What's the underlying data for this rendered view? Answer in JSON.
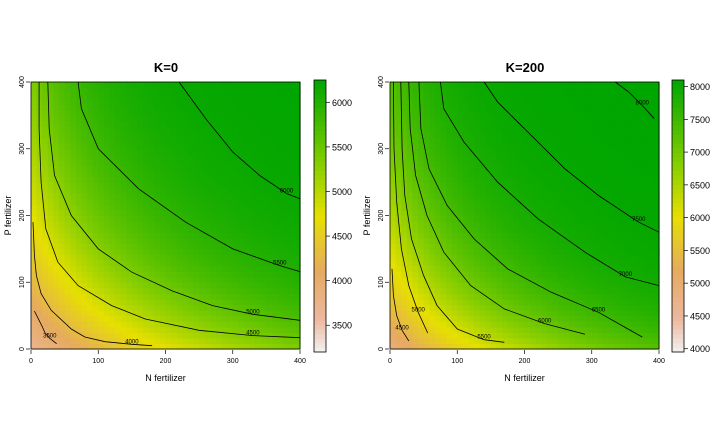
{
  "chart_data": [
    {
      "type": "heatmap",
      "title": "K=0",
      "xlabel": "N fertilizer",
      "ylabel": "P fertilizer",
      "xlim": [
        0,
        400
      ],
      "ylim": [
        0,
        400
      ],
      "xticks": [
        "0",
        "100",
        "200",
        "300",
        "400"
      ],
      "yticks": [
        "0",
        "100",
        "200",
        "300",
        "400"
      ],
      "colorbar": {
        "range": [
          3200,
          6250
        ],
        "ticks": [
          "3500",
          "4000",
          "4500",
          "5000",
          "5500",
          "6000"
        ]
      },
      "contours": [
        {
          "level": "3500",
          "points": [
            [
              5,
              57
            ],
            [
              12,
              43
            ],
            [
              17,
              33
            ],
            [
              21,
              24
            ],
            [
              28,
              16
            ],
            [
              38,
              8
            ]
          ]
        },
        {
          "level": "4000",
          "points": [
            [
              3,
              190
            ],
            [
              5,
              140
            ],
            [
              8,
              110
            ],
            [
              15,
              83
            ],
            [
              30,
              58
            ],
            [
              60,
              30
            ],
            [
              80,
              18
            ],
            [
              110,
              11
            ],
            [
              150,
              7
            ],
            [
              180,
              5
            ]
          ]
        },
        {
          "level": "4500",
          "points": [
            [
              12,
              400
            ],
            [
              12,
              330
            ],
            [
              15,
              250
            ],
            [
              22,
              180
            ],
            [
              40,
              130
            ],
            [
              70,
              95
            ],
            [
              120,
              65
            ],
            [
              170,
              45
            ],
            [
              250,
              28
            ],
            [
              330,
              20
            ],
            [
              400,
              17
            ]
          ]
        },
        {
          "level": "5000",
          "points": [
            [
              25,
              400
            ],
            [
              27,
              330
            ],
            [
              35,
              260
            ],
            [
              60,
              200
            ],
            [
              100,
              150
            ],
            [
              150,
              115
            ],
            [
              210,
              87
            ],
            [
              270,
              65
            ],
            [
              330,
              52
            ],
            [
              400,
              43
            ]
          ]
        },
        {
          "level": "5500",
          "points": [
            [
              70,
              400
            ],
            [
              75,
              360
            ],
            [
              100,
              300
            ],
            [
              160,
              240
            ],
            [
              230,
              190
            ],
            [
              300,
              150
            ],
            [
              370,
              125
            ],
            [
              400,
              116
            ]
          ]
        },
        {
          "level": "6000",
          "points": [
            [
              220,
              400
            ],
            [
              260,
              345
            ],
            [
              300,
              295
            ],
            [
              340,
              260
            ],
            [
              380,
              233
            ],
            [
              400,
              225
            ]
          ]
        }
      ],
      "colors": {
        "low": "#f2f2f2",
        "mid_low": "#e5b47f",
        "mid": "#e6e000",
        "high": "#00a600"
      }
    },
    {
      "type": "heatmap",
      "title": "K=200",
      "xlabel": "N fertilizer",
      "ylabel": "P fertilizer",
      "xlim": [
        0,
        400
      ],
      "ylim": [
        0,
        400
      ],
      "xticks": [
        "0",
        "100",
        "200",
        "300",
        "400"
      ],
      "yticks": [
        "0",
        "100",
        "200",
        "300",
        "400"
      ],
      "colorbar": {
        "range": [
          3950,
          8100
        ],
        "ticks": [
          "4000",
          "4500",
          "5000",
          "5500",
          "6000",
          "6500",
          "7000",
          "7500",
          "8000"
        ]
      },
      "contours": [
        {
          "level": "4500",
          "points": [
            [
              3,
              120
            ],
            [
              5,
              80
            ],
            [
              10,
              50
            ],
            [
              18,
              28
            ],
            [
              28,
              12
            ]
          ]
        },
        {
          "level": "5000",
          "points": [
            [
              5,
              400
            ],
            [
              6,
              300
            ],
            [
              10,
              220
            ],
            [
              17,
              150
            ],
            [
              28,
              95
            ],
            [
              42,
              55
            ],
            [
              56,
              24
            ]
          ]
        },
        {
          "level": "5500",
          "points": [
            [
              16,
              400
            ],
            [
              18,
              300
            ],
            [
              22,
              230
            ],
            [
              32,
              165
            ],
            [
              50,
              110
            ],
            [
              70,
              65
            ],
            [
              100,
              30
            ],
            [
              140,
              14
            ],
            [
              170,
              10
            ]
          ]
        },
        {
          "level": "6000",
          "points": [
            [
              28,
              400
            ],
            [
              30,
              330
            ],
            [
              38,
              260
            ],
            [
              55,
              200
            ],
            [
              80,
              145
            ],
            [
              120,
              95
            ],
            [
              170,
              60
            ],
            [
              230,
              38
            ],
            [
              290,
              22
            ]
          ]
        },
        {
          "level": "6500",
          "points": [
            [
              43,
              400
            ],
            [
              46,
              330
            ],
            [
              58,
              270
            ],
            [
              85,
              215
            ],
            [
              125,
              165
            ],
            [
              175,
              120
            ],
            [
              240,
              85
            ],
            [
              310,
              55
            ],
            [
              375,
              18
            ]
          ]
        },
        {
          "level": "7000",
          "points": [
            [
              75,
              400
            ],
            [
              80,
              360
            ],
            [
              110,
              310
            ],
            [
              160,
              250
            ],
            [
              220,
              195
            ],
            [
              290,
              145
            ],
            [
              350,
              108
            ],
            [
              400,
              95
            ]
          ]
        },
        {
          "level": "7500",
          "points": [
            [
              140,
              400
            ],
            [
              160,
              370
            ],
            [
              210,
              320
            ],
            [
              260,
              270
            ],
            [
              310,
              230
            ],
            [
              370,
              190
            ],
            [
              400,
              175
            ]
          ]
        },
        {
          "level": "8000",
          "points": [
            [
              335,
              400
            ],
            [
              355,
              385
            ],
            [
              375,
              365
            ],
            [
              393,
              345
            ]
          ]
        }
      ],
      "colors": {
        "low": "#f2f2f2",
        "mid_low": "#e5b47f",
        "mid": "#e6e000",
        "high": "#00a600"
      }
    }
  ]
}
